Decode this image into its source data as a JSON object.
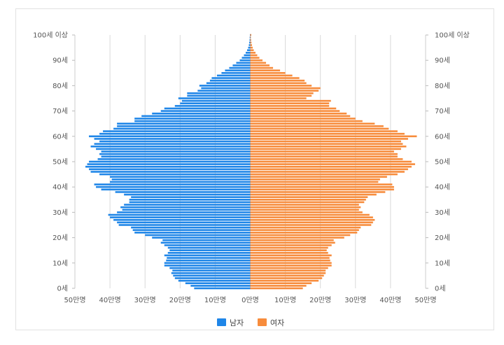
{
  "chart_data": {
    "type": "population-pyramid",
    "x_axis": {
      "ticks": [
        {
          "value": -500000,
          "label": "50만명"
        },
        {
          "value": -400000,
          "label": "40만명"
        },
        {
          "value": -300000,
          "label": "30만명"
        },
        {
          "value": -200000,
          "label": "20만명"
        },
        {
          "value": -100000,
          "label": "10만명"
        },
        {
          "value": 0,
          "label": "0만명"
        },
        {
          "value": 100000,
          "label": "10만명"
        },
        {
          "value": 200000,
          "label": "20만명"
        },
        {
          "value": 300000,
          "label": "30만명"
        },
        {
          "value": 400000,
          "label": "40만명"
        },
        {
          "value": 500000,
          "label": "50만명"
        }
      ],
      "range": [
        -500000,
        500000
      ],
      "unit": "명"
    },
    "y_axis": {
      "ticks": [
        {
          "value": 0,
          "label": "0세"
        },
        {
          "value": 10,
          "label": "10세"
        },
        {
          "value": 20,
          "label": "20세"
        },
        {
          "value": 30,
          "label": "30세"
        },
        {
          "value": 40,
          "label": "40세"
        },
        {
          "value": 50,
          "label": "50세"
        },
        {
          "value": 60,
          "label": "60세"
        },
        {
          "value": 70,
          "label": "70세"
        },
        {
          "value": 80,
          "label": "80세"
        },
        {
          "value": 90,
          "label": "90세"
        },
        {
          "value": 100,
          "label": "100세 이상"
        }
      ],
      "range": [
        0,
        100
      ],
      "both_sides": true
    },
    "grid": true,
    "legend_position": "bottom",
    "ages": [
      0,
      1,
      2,
      3,
      4,
      5,
      6,
      7,
      8,
      9,
      10,
      11,
      12,
      13,
      14,
      15,
      16,
      17,
      18,
      19,
      20,
      21,
      22,
      23,
      24,
      25,
      26,
      27,
      28,
      29,
      30,
      31,
      32,
      33,
      34,
      35,
      36,
      37,
      38,
      39,
      40,
      41,
      42,
      43,
      44,
      45,
      46,
      47,
      48,
      49,
      50,
      51,
      52,
      53,
      54,
      55,
      56,
      57,
      58,
      59,
      60,
      61,
      62,
      63,
      64,
      65,
      66,
      67,
      68,
      69,
      70,
      71,
      72,
      73,
      74,
      75,
      76,
      77,
      78,
      79,
      80,
      81,
      82,
      83,
      84,
      85,
      86,
      87,
      88,
      89,
      90,
      91,
      92,
      93,
      94,
      95,
      96,
      97,
      98,
      99,
      100
    ],
    "series": [
      {
        "name": "남자",
        "color": "#1f86e8",
        "values": [
          160000,
          170000,
          185000,
          205000,
          215000,
          220000,
          225000,
          222000,
          230000,
          245000,
          245000,
          240000,
          238000,
          245000,
          235000,
          230000,
          235000,
          245000,
          255000,
          250000,
          280000,
          300000,
          330000,
          335000,
          340000,
          375000,
          380000,
          390000,
          400000,
          405000,
          380000,
          365000,
          370000,
          360000,
          345000,
          345000,
          340000,
          360000,
          385000,
          425000,
          440000,
          445000,
          400000,
          395000,
          400000,
          430000,
          455000,
          460000,
          470000,
          465000,
          460000,
          435000,
          425000,
          430000,
          425000,
          440000,
          455000,
          445000,
          430000,
          445000,
          460000,
          430000,
          420000,
          390000,
          380000,
          380000,
          330000,
          330000,
          310000,
          280000,
          255000,
          245000,
          215000,
          200000,
          195000,
          205000,
          180000,
          180000,
          150000,
          140000,
          145000,
          125000,
          115000,
          110000,
          95000,
          82000,
          72000,
          60000,
          50000,
          40000,
          30000,
          24000,
          18000,
          13000,
          9000,
          6000,
          4000,
          3000,
          2000,
          1500,
          1000
        ]
      },
      {
        "name": "여자",
        "color": "#f78c3c",
        "values": [
          150000,
          160000,
          175000,
          195000,
          205000,
          210000,
          215000,
          215000,
          222000,
          232000,
          232000,
          228000,
          226000,
          232000,
          222000,
          218000,
          222000,
          232000,
          242000,
          238000,
          268000,
          285000,
          305000,
          310000,
          315000,
          345000,
          350000,
          355000,
          350000,
          340000,
          320000,
          310000,
          315000,
          310000,
          325000,
          330000,
          335000,
          360000,
          385000,
          410000,
          410000,
          405000,
          365000,
          370000,
          390000,
          420000,
          440000,
          450000,
          460000,
          470000,
          460000,
          435000,
          420000,
          420000,
          410000,
          430000,
          445000,
          435000,
          430000,
          450000,
          475000,
          440000,
          420000,
          395000,
          380000,
          355000,
          320000,
          300000,
          285000,
          275000,
          255000,
          245000,
          225000,
          225000,
          230000,
          160000,
          175000,
          180000,
          195000,
          200000,
          175000,
          160000,
          155000,
          140000,
          120000,
          100000,
          85000,
          65000,
          55000,
          45000,
          35000,
          26000,
          20000,
          15000,
          10000,
          7000,
          5000,
          3500,
          2500,
          1800,
          3000
        ]
      }
    ]
  }
}
